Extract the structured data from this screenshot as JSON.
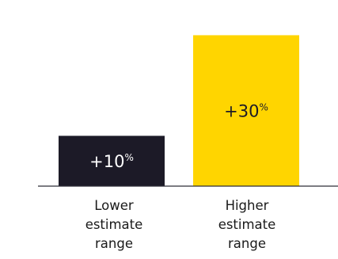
{
  "chart_data": {
    "type": "bar",
    "categories": [
      [
        "Lower",
        "estimate",
        "range"
      ],
      [
        "Higher",
        "estimate",
        "range"
      ]
    ],
    "values": [
      10,
      30
    ],
    "value_labels": [
      "+10",
      "+30"
    ],
    "unit": "%",
    "ylim": [
      0,
      37
    ],
    "grid": false,
    "legend": "none",
    "bar_colors": [
      "#1c1a27",
      "#ffd500"
    ],
    "label_colors": [
      "#ffffff",
      "#1c1a27"
    ],
    "baseline_color": "#2e2e38"
  }
}
